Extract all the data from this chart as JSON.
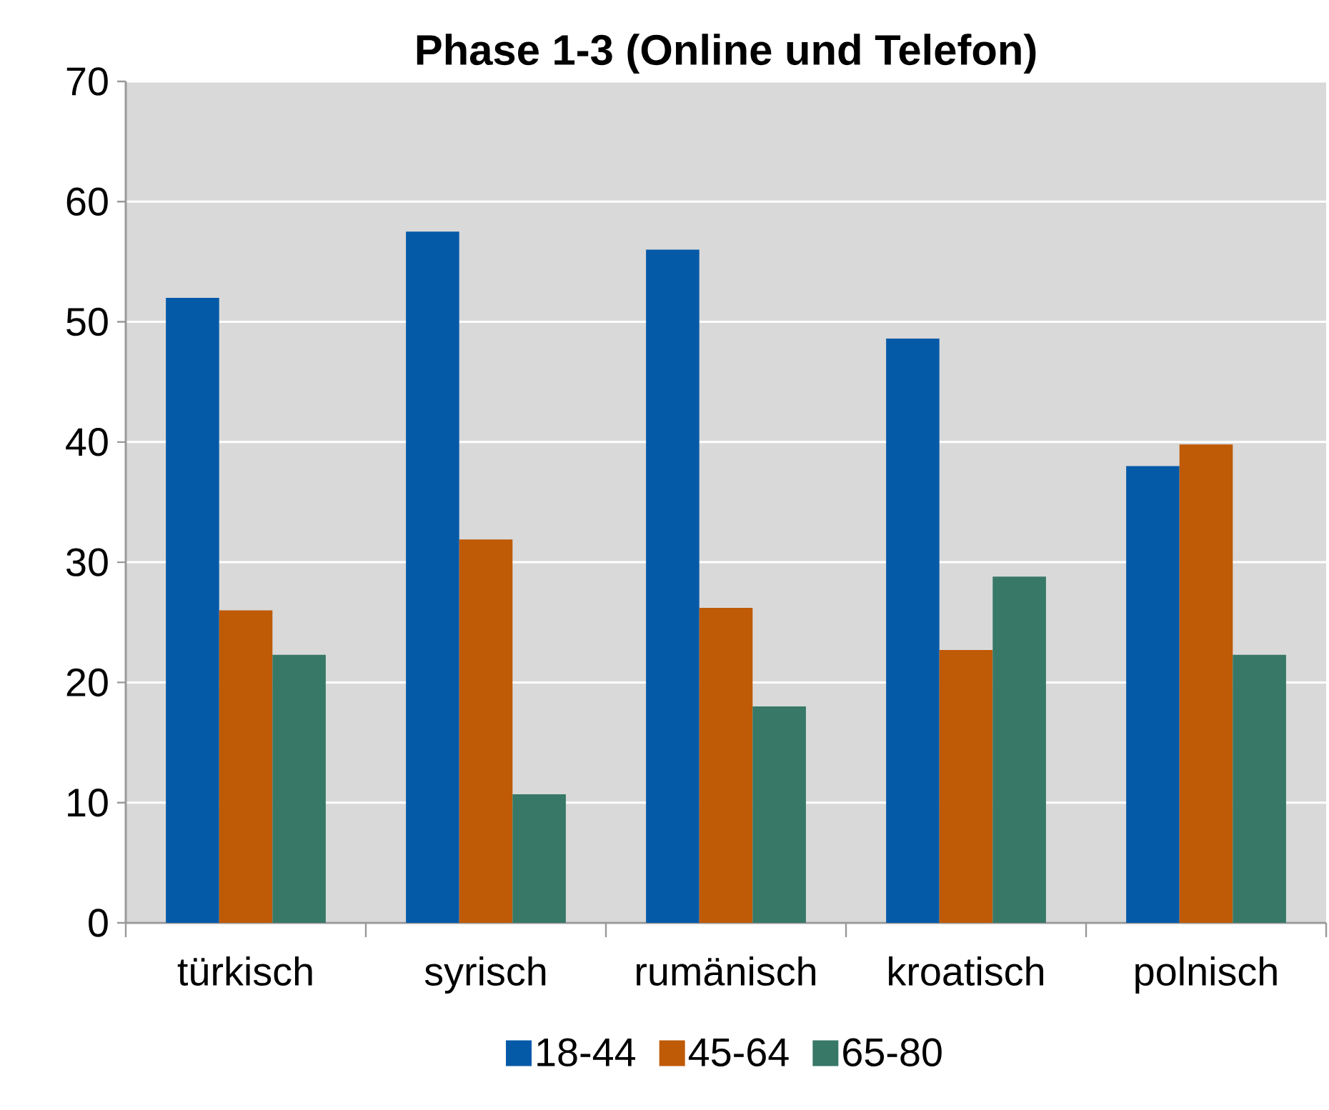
{
  "chart_data": {
    "type": "bar",
    "title": "Phase 1-3 (Online und Telefon)",
    "categories": [
      "türkisch",
      "syrisch",
      "rumänisch",
      "kroatisch",
      "polnisch"
    ],
    "series": [
      {
        "name": "18-44",
        "color": "#055aa8",
        "values": [
          52.0,
          57.5,
          56.0,
          48.6,
          38.0
        ]
      },
      {
        "name": "45-64",
        "color": "#bf5a07",
        "values": [
          26.0,
          31.9,
          26.2,
          22.7,
          39.8
        ]
      },
      {
        "name": "65-80",
        "color": "#377867",
        "values": [
          22.3,
          10.7,
          18.0,
          28.8,
          22.3
        ]
      }
    ],
    "ylim": [
      0,
      70
    ],
    "yticks": [
      0,
      10,
      20,
      30,
      40,
      50,
      60,
      70
    ],
    "grid": "y",
    "legend": "bottom"
  }
}
